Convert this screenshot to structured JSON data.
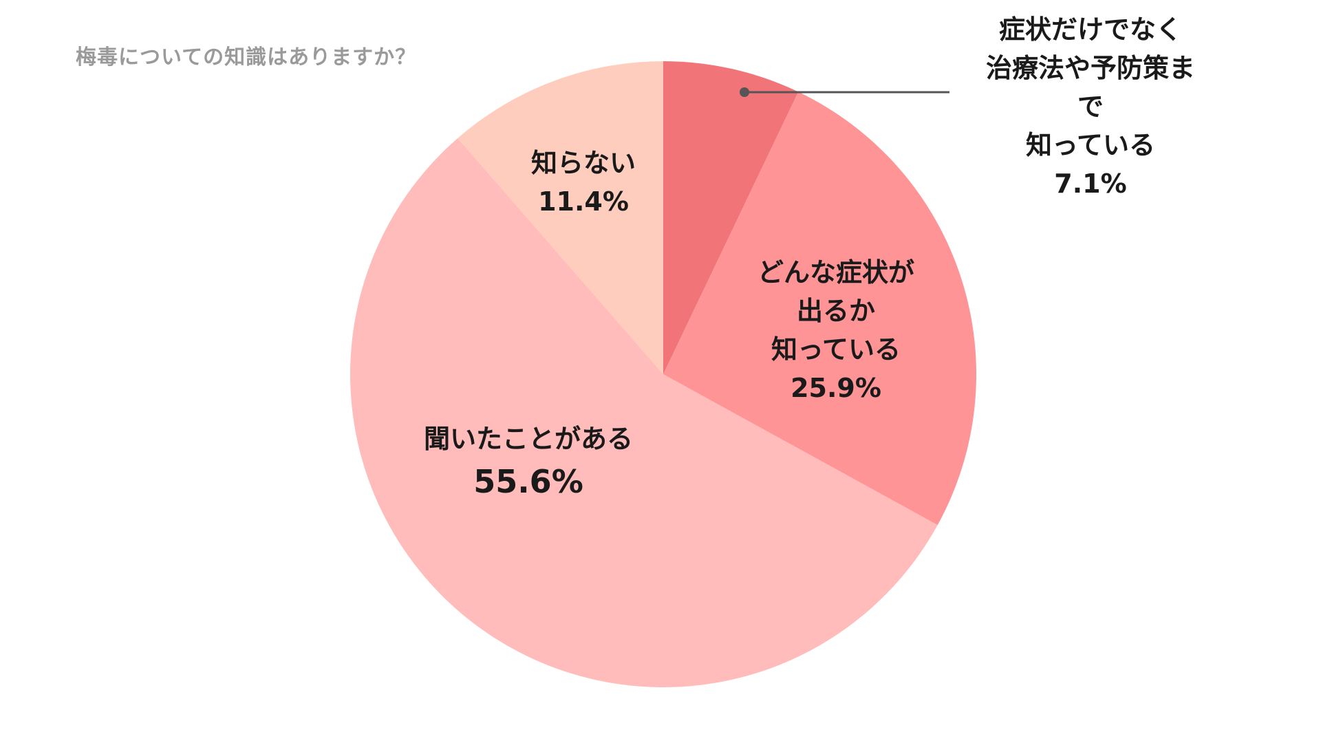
{
  "title": "梅毒についての知識はありますか？",
  "chart_data": {
    "type": "pie",
    "title": "梅毒についての知識はありますか？",
    "start_angle_deg": 0,
    "direction": "clockwise",
    "slices": [
      {
        "label": "症状だけでなく\n治療法や予防策まで\n知っている",
        "value": 7.1,
        "value_label": "7.1%",
        "color": "#F07478"
      },
      {
        "label": "どんな症状が\n出るか\n知っている",
        "value": 25.9,
        "value_label": "25.9%",
        "color": "#FF9496"
      },
      {
        "label": "聞いたことがある",
        "value": 55.6,
        "value_label": "55.6%",
        "color": "#FFBCBB"
      },
      {
        "label": "知らない",
        "value": 11.4,
        "value_label": "11.4%",
        "color": "#FFCDBE"
      }
    ]
  }
}
